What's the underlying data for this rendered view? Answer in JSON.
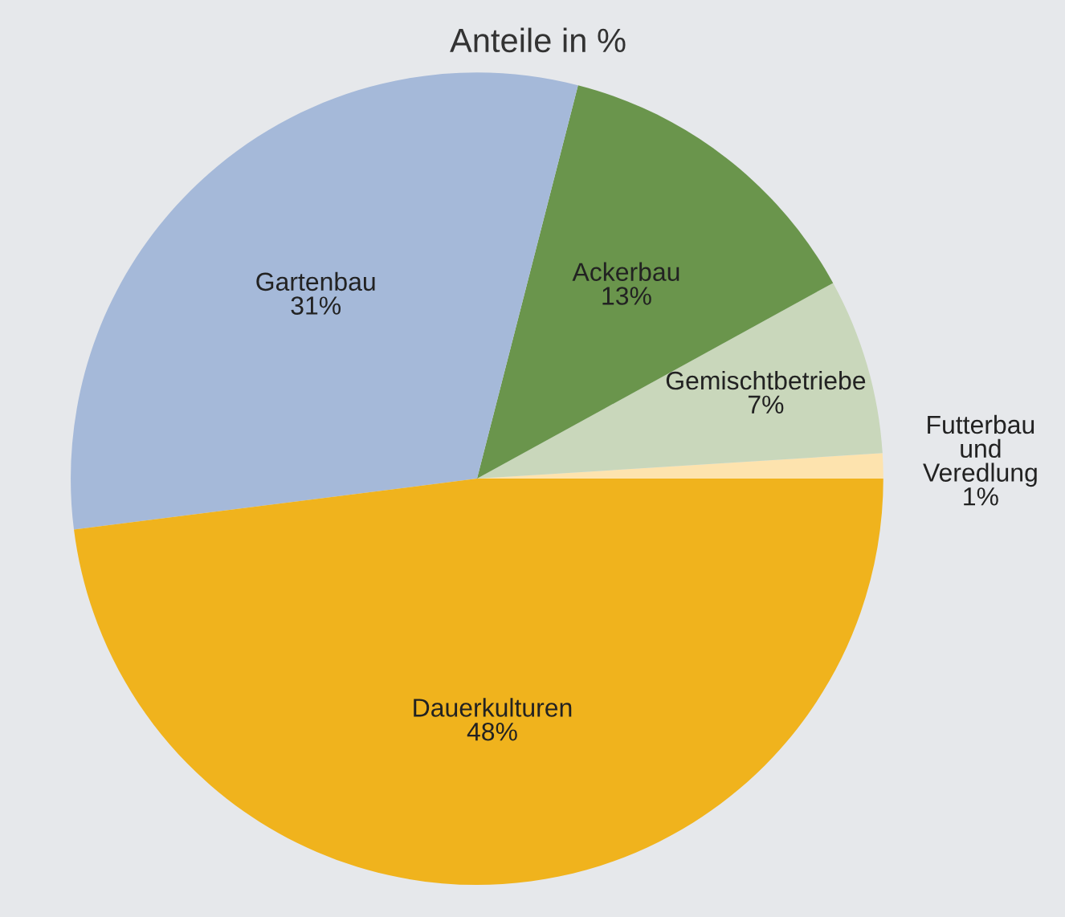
{
  "chart_data": {
    "type": "pie",
    "title": "Anteile in %",
    "categories": [
      "Futterbau\nund\nVeredlung",
      "Gemischtbetriebe",
      "Ackerbau",
      "Gartenbau",
      "Dauerkulturen"
    ],
    "values": [
      1,
      7,
      13,
      31,
      48
    ],
    "colors": [
      "#fde3ae",
      "#c9d7bb",
      "#6a954c",
      "#a5b9d9",
      "#f0b31d"
    ],
    "value_labels": [
      "1%",
      "7%",
      "13%",
      "31%",
      "48%"
    ]
  }
}
